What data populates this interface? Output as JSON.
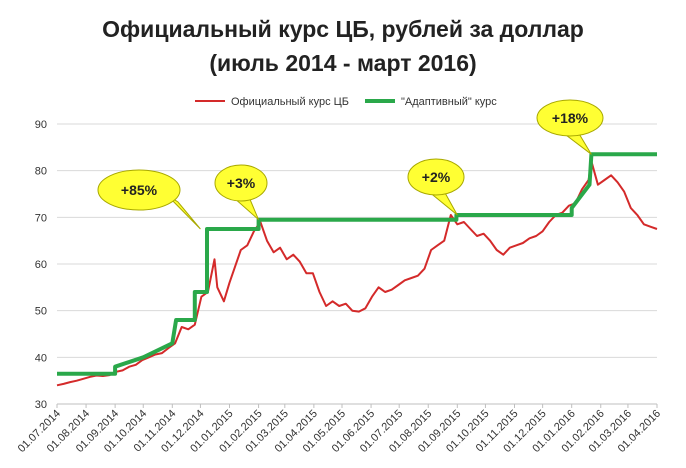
{
  "chart_data": {
    "type": "line",
    "title": "Официальный курс ЦБ, рублей за доллар",
    "subtitle": "(июль 2014 - март 2016)",
    "xlabel": "",
    "ylabel": "",
    "ylim": [
      30,
      90
    ],
    "yticks": [
      30,
      40,
      50,
      60,
      70,
      80,
      90
    ],
    "xticks": [
      "01.07.2014",
      "01.08.2014",
      "01.09.2014",
      "01.10.2014",
      "01.11.2014",
      "01.12.2014",
      "01.01.2015",
      "01.02.2015",
      "01.03.2015",
      "01.04.2015",
      "01.05.2015",
      "01.06.2015",
      "01.07.2015",
      "01.08.2015",
      "01.09.2015",
      "01.10.2015",
      "01.11.2015",
      "01.12.2015",
      "01.01.2016",
      "01.02.2016",
      "01.03.2016",
      "01.04.2016"
    ],
    "grid": true,
    "legend_position": "top",
    "series": [
      {
        "name": "Официальный курс ЦБ",
        "color": "#d42a2a",
        "points": [
          [
            "01.07.2014",
            34.0
          ],
          [
            "08.07.2014",
            34.3
          ],
          [
            "15.07.2014",
            34.7
          ],
          [
            "22.07.2014",
            35.0
          ],
          [
            "29.07.2014",
            35.4
          ],
          [
            "05.08.2014",
            35.8
          ],
          [
            "12.08.2014",
            36.1
          ],
          [
            "19.08.2014",
            36.0
          ],
          [
            "26.08.2014",
            36.2
          ],
          [
            "02.09.2014",
            36.9
          ],
          [
            "09.09.2014",
            37.2
          ],
          [
            "16.09.2014",
            38.0
          ],
          [
            "23.09.2014",
            38.4
          ],
          [
            "30.09.2014",
            39.4
          ],
          [
            "07.10.2014",
            40.0
          ],
          [
            "14.10.2014",
            40.6
          ],
          [
            "21.10.2014",
            40.9
          ],
          [
            "28.10.2014",
            42.0
          ],
          [
            "04.11.2014",
            43.0
          ],
          [
            "11.11.2014",
            46.5
          ],
          [
            "18.11.2014",
            46.0
          ],
          [
            "25.11.2014",
            47.0
          ],
          [
            "02.12.2014",
            53.0
          ],
          [
            "09.12.2014",
            54.0
          ],
          [
            "16.12.2014",
            61.0
          ],
          [
            "19.12.2014",
            55.0
          ],
          [
            "26.12.2014",
            52.0
          ],
          [
            "01.01.2015",
            56.0
          ],
          [
            "13.01.2015",
            63.0
          ],
          [
            "20.01.2015",
            64.0
          ],
          [
            "27.01.2015",
            67.0
          ],
          [
            "03.02.2015",
            69.0
          ],
          [
            "10.02.2015",
            65.0
          ],
          [
            "17.02.2015",
            62.5
          ],
          [
            "24.02.2015",
            63.5
          ],
          [
            "03.03.2015",
            61.0
          ],
          [
            "10.03.2015",
            62.0
          ],
          [
            "17.03.2015",
            60.5
          ],
          [
            "24.03.2015",
            58.0
          ],
          [
            "31.03.2015",
            58.0
          ],
          [
            "07.04.2015",
            54.0
          ],
          [
            "14.04.2015",
            51.0
          ],
          [
            "21.04.2015",
            52.0
          ],
          [
            "28.04.2015",
            51.0
          ],
          [
            "05.05.2015",
            51.5
          ],
          [
            "12.05.2015",
            50.0
          ],
          [
            "19.05.2015",
            49.8
          ],
          [
            "26.05.2015",
            50.5
          ],
          [
            "02.06.2015",
            53.0
          ],
          [
            "09.06.2015",
            55.0
          ],
          [
            "16.06.2015",
            54.0
          ],
          [
            "23.06.2015",
            54.5
          ],
          [
            "30.06.2015",
            55.5
          ],
          [
            "07.07.2015",
            56.5
          ],
          [
            "14.07.2015",
            57.0
          ],
          [
            "21.07.2015",
            57.5
          ],
          [
            "28.07.2015",
            59.0
          ],
          [
            "04.08.2015",
            63.0
          ],
          [
            "11.08.2015",
            64.0
          ],
          [
            "18.08.2015",
            65.0
          ],
          [
            "25.08.2015",
            70.5
          ],
          [
            "01.09.2015",
            68.5
          ],
          [
            "08.09.2015",
            69.0
          ],
          [
            "15.09.2015",
            67.5
          ],
          [
            "22.09.2015",
            66.0
          ],
          [
            "29.09.2015",
            66.5
          ],
          [
            "06.10.2015",
            65.0
          ],
          [
            "13.10.2015",
            63.0
          ],
          [
            "20.10.2015",
            62.0
          ],
          [
            "27.10.2015",
            63.5
          ],
          [
            "03.11.2015",
            64.0
          ],
          [
            "10.11.2015",
            64.5
          ],
          [
            "17.11.2015",
            65.5
          ],
          [
            "24.11.2015",
            66.0
          ],
          [
            "01.12.2015",
            67.0
          ],
          [
            "08.12.2015",
            69.0
          ],
          [
            "15.12.2015",
            70.5
          ],
          [
            "22.12.2015",
            71.0
          ],
          [
            "29.12.2015",
            72.5
          ],
          [
            "05.01.2016",
            73.0
          ],
          [
            "12.01.2016",
            76.0
          ],
          [
            "19.01.2016",
            78.0
          ],
          [
            "22.01.2016",
            82.0
          ],
          [
            "29.01.2016",
            77.0
          ],
          [
            "05.02.2016",
            78.0
          ],
          [
            "12.02.2016",
            79.0
          ],
          [
            "19.02.2016",
            77.5
          ],
          [
            "26.02.2016",
            75.5
          ],
          [
            "04.03.2016",
            72.0
          ],
          [
            "11.03.2016",
            70.5
          ],
          [
            "18.03.2016",
            68.5
          ],
          [
            "25.03.2016",
            68.0
          ],
          [
            "01.04.2016",
            67.5
          ]
        ]
      },
      {
        "name": "\"Адаптивный\" курс",
        "color": "#2aa84a",
        "points": [
          [
            "01.07.2014",
            36.5
          ],
          [
            "01.09.2014",
            36.5
          ],
          [
            "01.09.2014",
            38.0
          ],
          [
            "01.10.2014",
            40.0
          ],
          [
            "01.11.2014",
            43.0
          ],
          [
            "05.11.2014",
            48.0
          ],
          [
            "25.11.2014",
            48.0
          ],
          [
            "25.11.2014",
            54.0
          ],
          [
            "08.12.2014",
            54.0
          ],
          [
            "08.12.2014",
            67.5
          ],
          [
            "01.02.2015",
            67.5
          ],
          [
            "01.02.2015",
            69.5
          ],
          [
            "31.08.2015",
            69.5
          ],
          [
            "31.08.2015",
            70.5
          ],
          [
            "01.01.2016",
            70.5
          ],
          [
            "01.01.2016",
            72.0
          ],
          [
            "20.01.2016",
            77.0
          ],
          [
            "22.01.2016",
            83.5
          ],
          [
            "01.04.2016",
            83.5
          ]
        ]
      }
    ],
    "annotations": [
      {
        "text": "+85%",
        "date": "01.12.2014",
        "y": 67.5
      },
      {
        "text": "+3%",
        "date": "01.02.2015",
        "y": 69.5
      },
      {
        "text": "+2%",
        "date": "01.09.2015",
        "y": 70.5
      },
      {
        "text": "+18%",
        "date": "22.01.2016",
        "y": 83.5
      }
    ]
  }
}
